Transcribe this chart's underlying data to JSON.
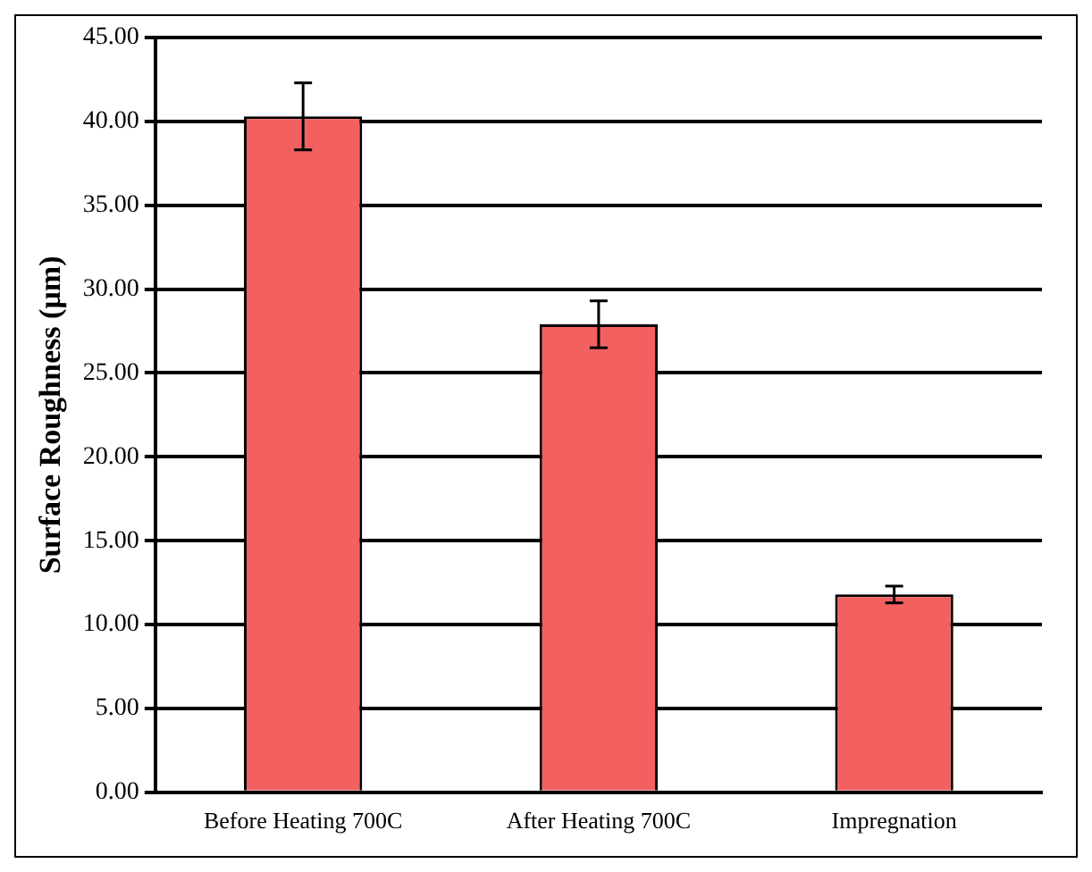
{
  "chart_data": {
    "type": "bar",
    "ylabel": "Surface Roughness (µm)",
    "categories": [
      "Before Heating 700C",
      "After Heating 700C",
      "Impregnation"
    ],
    "values": [
      40.3,
      27.9,
      11.8
    ],
    "errors": [
      2.0,
      1.4,
      0.5
    ],
    "color": "#f26060",
    "ylim": [
      0,
      45
    ],
    "yticks": [
      {
        "value": 0,
        "label": "0.00"
      },
      {
        "value": 5,
        "label": "5.00"
      },
      {
        "value": 10,
        "label": "10.00"
      },
      {
        "value": 15,
        "label": "15.00"
      },
      {
        "value": 20,
        "label": "20.00"
      },
      {
        "value": 25,
        "label": "25.00"
      },
      {
        "value": 30,
        "label": "30.00"
      },
      {
        "value": 35,
        "label": "35.00"
      },
      {
        "value": 40,
        "label": "40.00"
      },
      {
        "value": 45,
        "label": "45.00"
      }
    ],
    "grid": "y",
    "legend": false
  }
}
